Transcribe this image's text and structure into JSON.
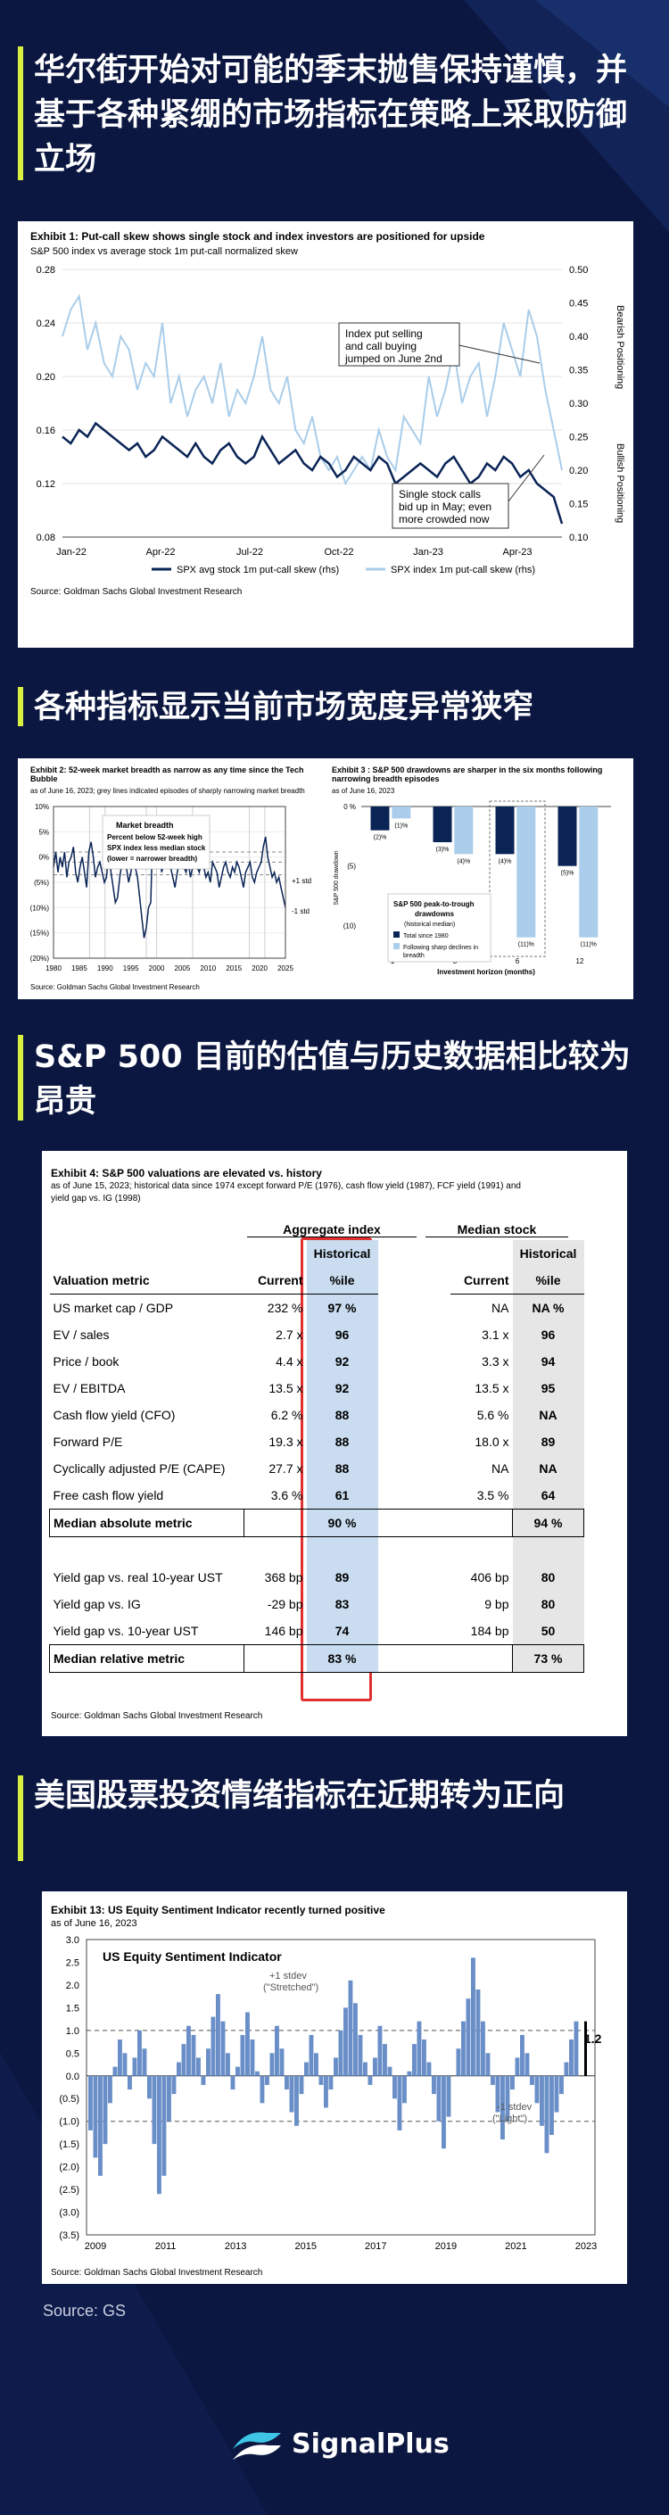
{
  "sections": [
    {
      "title": "华尔街开始对可能的季末抛售保持谨慎，并基于各种紧绷的市场指标在策略上采取防御立场"
    },
    {
      "title": "各种指标显示当前市场宽度异常狭窄"
    },
    {
      "title": "S&P 500 目前的估值与历史数据相比较为昂贵"
    },
    {
      "title": "美国股票投资情绪指标在近期转为正向"
    }
  ],
  "exhibit1": {
    "title": "Exhibit 1: Put-call skew shows single stock and index investors are positioned for upside",
    "subtitle": "S&P 500 index vs average stock 1m put-call normalized skew",
    "source": "Source: Goldman Sachs Global Investment Research",
    "annotation1": [
      "Index put selling",
      "and call buying",
      "jumped on June 2nd"
    ],
    "annotation2": [
      "Single stock calls",
      "bid up in May; even",
      "more crowded now"
    ],
    "right_label_top": "Bearish Positioning",
    "right_label_bottom": "Bullish Positioning",
    "colors": {
      "navy": "#0a2456",
      "light": "#a9cdea"
    }
  },
  "exhibit2": {
    "title": "Exhibit 2: 52-week market breadth as narrow as any time since the Tech Bubble",
    "subtitle": "as of June 16, 2023; grey lines indicated episodes of sharply narrowing market breadth",
    "source": "Source: Goldman Sachs Global Investment Research",
    "legend": [
      "Market breadth",
      "Percent below 52-week high",
      "SPX index less median stock",
      "(lower = narrower breadth)"
    ],
    "band_top": "+1 std",
    "band_bottom": "-1 std"
  },
  "exhibit3": {
    "title": "Exhibit 3 : S&P 500 drawdowns are sharper in the six months following narrowing breadth episodes",
    "subtitle": "as of June 16, 2023",
    "legend_title": [
      "S&P 500 peak-to-trough",
      "drawdowns",
      "(historical median)"
    ],
    "legend_items": [
      "Total since 1980",
      "Following sharp declines in",
      "breadth"
    ],
    "source": "Source: Goldman Sachs Global Investment Research"
  },
  "exhibit4": {
    "title": "Exhibit 4: S&P 500 valuations are elevated vs. history",
    "subtitle": [
      "as of June 15, 2023; historical data since 1974 except forward P/E (1976), cash flow yield (1987), FCF yield (1991) and",
      "yield gap vs. IG (1998)"
    ],
    "source": "Source: Goldman Sachs Global Investment Research",
    "group_headers": [
      "Aggregate index",
      "Median stock"
    ],
    "col_headers": [
      "Valuation metric",
      "Current",
      "Historical",
      "%ile",
      "Current",
      "Historical",
      "%ile"
    ],
    "rows": [
      {
        "metric": "US market cap / GDP",
        "agg_current": "232 %",
        "agg_pct": "97 %",
        "med_current": "NA",
        "med_pct": "NA %"
      },
      {
        "metric": "EV / sales",
        "agg_current": "2.7 x",
        "agg_pct": "96",
        "med_current": "3.1 x",
        "med_pct": "96"
      },
      {
        "metric": "Price / book",
        "agg_current": "4.4 x",
        "agg_pct": "92",
        "med_current": "3.3 x",
        "med_pct": "94"
      },
      {
        "metric": "EV / EBITDA",
        "agg_current": "13.5 x",
        "agg_pct": "92",
        "med_current": "13.5 x",
        "med_pct": "95"
      },
      {
        "metric": "Cash flow yield (CFO)",
        "agg_current": "6.2 %",
        "agg_pct": "88",
        "med_current": "5.6 %",
        "med_pct": "NA"
      },
      {
        "metric": "Forward P/E",
        "agg_current": "19.3 x",
        "agg_pct": "88",
        "med_current": "18.0 x",
        "med_pct": "89"
      },
      {
        "metric": "Cyclically adjusted P/E (CAPE)",
        "agg_current": "27.7 x",
        "agg_pct": "88",
        "med_current": "NA",
        "med_pct": "NA"
      },
      {
        "metric": "Free cash flow yield",
        "agg_current": "3.6 %",
        "agg_pct": "61",
        "med_current": "3.5 %",
        "med_pct": "64"
      }
    ],
    "median_abs": {
      "metric": "Median absolute metric",
      "agg_pct": "90 %",
      "med_pct": "94 %"
    },
    "rows2": [
      {
        "metric": "Yield gap vs. real 10-year UST",
        "agg_current": "368 bp",
        "agg_pct": "89",
        "med_current": "406 bp",
        "med_pct": "80"
      },
      {
        "metric": "Yield gap vs. IG",
        "agg_current": "-29 bp",
        "agg_pct": "83",
        "med_current": "9 bp",
        "med_pct": "80"
      },
      {
        "metric": "Yield gap vs. 10-year UST",
        "agg_current": "146 bp",
        "agg_pct": "74",
        "med_current": "184 bp",
        "med_pct": "50"
      }
    ],
    "median_rel": {
      "metric": "Median relative metric",
      "agg_pct": "83 %",
      "med_pct": "73 %"
    },
    "highlight_color": "#e03030"
  },
  "exhibit13": {
    "title": "Exhibit 13: US Equity Sentiment Indicator recently turned positive",
    "subtitle": "as of June 16, 2023",
    "inner_title": "US Equity Sentiment Indicator",
    "upper_label": [
      "+1 stdev",
      "(\"Stretched\")"
    ],
    "lower_label": [
      "-1 stdev",
      "(\"Light\")"
    ],
    "latest_label": "1.2",
    "source": "Source: Goldman Sachs Global Investment Research"
  },
  "footer": {
    "source": "Source: GS",
    "brand": "SignalPlus"
  },
  "chart_data": [
    {
      "type": "line",
      "title": "Exhibit 1: Put-call skew shows single stock and index investors are positioned for upside",
      "x_ticks": [
        "Jan-22",
        "Apr-22",
        "Jul-22",
        "Oct-22",
        "Jan-23",
        "Apr-23"
      ],
      "y_left_ticks": [
        "0.08",
        "0.12",
        "0.16",
        "0.20",
        "0.24",
        "0.28"
      ],
      "y_left_range": [
        0.08,
        0.28
      ],
      "y_right_ticks": [
        "0.10",
        "0.15",
        "0.20",
        "0.25",
        "0.30",
        "0.35",
        "0.40",
        "0.45",
        "0.50"
      ],
      "y_right_range": [
        0.1,
        0.5
      ],
      "series": [
        {
          "name": "SPX avg stock 1m put-call skew (rhs)",
          "axis": "right",
          "color": "#0a2456",
          "values": [
            0.25,
            0.24,
            0.26,
            0.25,
            0.27,
            0.26,
            0.25,
            0.24,
            0.23,
            0.24,
            0.22,
            0.23,
            0.25,
            0.24,
            0.23,
            0.22,
            0.24,
            0.22,
            0.21,
            0.23,
            0.24,
            0.22,
            0.21,
            0.22,
            0.25,
            0.23,
            0.21,
            0.22,
            0.23,
            0.21,
            0.2,
            0.22,
            0.21,
            0.19,
            0.2,
            0.22,
            0.21,
            0.2,
            0.22,
            0.21,
            0.18,
            0.19,
            0.2,
            0.21,
            0.2,
            0.19,
            0.21,
            0.22,
            0.2,
            0.18,
            0.19,
            0.21,
            0.2,
            0.22,
            0.21,
            0.19,
            0.2,
            0.18,
            0.17,
            0.16,
            0.12
          ]
        },
        {
          "name": "SPX index 1m put-call skew (rhs)",
          "axis": "left",
          "color": "#a9cdea",
          "values": [
            0.23,
            0.25,
            0.26,
            0.22,
            0.24,
            0.21,
            0.2,
            0.23,
            0.22,
            0.19,
            0.21,
            0.2,
            0.24,
            0.18,
            0.2,
            0.17,
            0.19,
            0.2,
            0.18,
            0.21,
            0.17,
            0.19,
            0.18,
            0.2,
            0.23,
            0.19,
            0.18,
            0.2,
            0.16,
            0.15,
            0.17,
            0.14,
            0.13,
            0.14,
            0.12,
            0.13,
            0.14,
            0.13,
            0.16,
            0.14,
            0.13,
            0.17,
            0.16,
            0.15,
            0.2,
            0.17,
            0.19,
            0.22,
            0.18,
            0.2,
            0.21,
            0.17,
            0.2,
            0.24,
            0.22,
            0.2,
            0.25,
            0.23,
            0.19,
            0.16,
            0.13
          ]
        }
      ]
    },
    {
      "type": "line",
      "title": "Exhibit 2: 52-week market breadth as narrow as any time since the Tech Bubble",
      "x_ticks": [
        "1980",
        "1985",
        "1990",
        "1995",
        "2000",
        "2005",
        "2010",
        "2015",
        "2020",
        "2025"
      ],
      "y_ticks": [
        "10%",
        "5%",
        "0%",
        "(5%)",
        "(10%)",
        "(15%)",
        "(20%)"
      ],
      "y_range": [
        -20,
        10
      ],
      "mean_std": {
        "mean": -1,
        "plus": 1,
        "minus": -3.5
      },
      "series": [
        {
          "name": "SPX index less median stock",
          "values": [
            -2,
            1,
            -3,
            0,
            -2,
            1,
            -4,
            -1,
            0,
            2,
            -3,
            -5,
            -2,
            0,
            -3,
            -6,
            1,
            3,
            0,
            -4,
            -2,
            -1,
            -3,
            -5,
            -4,
            1,
            -3,
            -6,
            -9,
            -8,
            -4,
            -1,
            2,
            -2,
            -5,
            -3,
            0,
            -2,
            -4,
            -8,
            -12,
            -16,
            -14,
            -10,
            -9,
            6,
            4,
            2,
            0,
            -3,
            -1,
            2,
            1,
            -2,
            -4,
            -6,
            -3,
            -1,
            0,
            -2,
            -3,
            -1,
            -4,
            -2,
            1,
            -2,
            -3,
            -1,
            -2,
            -4,
            -3,
            -5,
            -1,
            -2,
            -3,
            -6,
            -4,
            -2,
            -1,
            -3,
            -4,
            -2,
            -3,
            -1,
            -2,
            -4,
            -6,
            -3,
            -2,
            -1,
            -4,
            -5,
            -3,
            -2,
            -1,
            2,
            4,
            0,
            -2,
            -4,
            -3,
            -5,
            -4,
            -6,
            -8,
            -10
          ]
        }
      ]
    },
    {
      "type": "bar",
      "title": "Exhibit 3 : S&P 500 drawdowns are sharper in the six months following narrowing breadth episodes",
      "xlabel": "Investment horizon (months)",
      "ylabel": "S&P 500 drawdown",
      "categories": [
        "1",
        "3",
        "6",
        "12"
      ],
      "y_ticks": [
        "0 %",
        "(5)",
        "(10)"
      ],
      "y_range": [
        -12,
        0
      ],
      "series": [
        {
          "name": "Total since 1980",
          "values": [
            -2,
            -3,
            -4,
            -5
          ],
          "labels": [
            "(2)%",
            "(3)%",
            "(4)%",
            "(5)%"
          ]
        },
        {
          "name": "Following sharp declines in breadth",
          "values": [
            -1,
            -4,
            -11,
            -11
          ],
          "labels": [
            "(1)%",
            "(4)%",
            "(11)%",
            "(11)%"
          ]
        }
      ]
    },
    {
      "type": "bar",
      "title": "US Equity Sentiment Indicator",
      "x_ticks": [
        "2009",
        "2011",
        "2013",
        "2015",
        "2017",
        "2019",
        "2021",
        "2023"
      ],
      "y_ticks": [
        "3.0",
        "2.5",
        "2.0",
        "1.5",
        "1.0",
        "0.5",
        "0.0",
        "(0.5)",
        "(1.0)",
        "(1.5)",
        "(2.0)",
        "(2.5)",
        "(3.0)",
        "(3.5)"
      ],
      "y_range": [
        -3.5,
        3.0
      ],
      "thresholds": [
        1.0,
        -1.0
      ],
      "latest": 1.2,
      "series": [
        {
          "name": "US Equity Sentiment Indicator",
          "values": [
            -1.2,
            -1.8,
            -2.2,
            -1.5,
            -0.6,
            0.2,
            0.8,
            0.5,
            -0.3,
            0.4,
            1.0,
            0.6,
            -0.5,
            -1.5,
            -2.6,
            -2.2,
            -1.0,
            -0.4,
            0.3,
            0.7,
            1.1,
            0.9,
            0.4,
            -0.2,
            0.6,
            1.3,
            1.8,
            1.2,
            0.5,
            -0.3,
            0.2,
            0.9,
            1.4,
            0.8,
            0.1,
            -0.6,
            -0.2,
            0.5,
            1.1,
            0.6,
            -0.3,
            -0.8,
            -1.1,
            -0.4,
            0.3,
            0.9,
            0.5,
            -0.2,
            -0.7,
            -0.3,
            0.4,
            1.0,
            1.5,
            2.1,
            1.6,
            0.9,
            0.3,
            -0.2,
            0.4,
            1.1,
            0.7,
            0.2,
            -0.5,
            -1.2,
            -0.6,
            0.1,
            0.7,
            1.2,
            0.8,
            0.3,
            -0.4,
            -1.0,
            -1.6,
            -0.9,
            0.0,
            0.6,
            1.2,
            1.7,
            2.6,
            1.9,
            1.2,
            0.5,
            -0.2,
            -0.8,
            -1.4,
            -1.0,
            -0.3,
            0.4,
            0.9,
            0.5,
            -0.2,
            -0.6,
            -1.1,
            -1.7,
            -1.3,
            -0.8,
            -0.4,
            0.3,
            0.8,
            1.2
          ]
        }
      ]
    }
  ]
}
